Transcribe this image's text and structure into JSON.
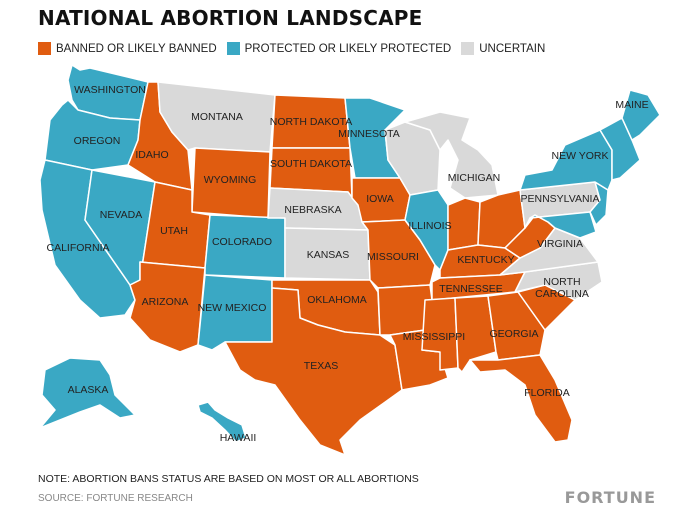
{
  "title": "NATIONAL ABORTION LANDSCAPE",
  "legend": [
    {
      "label": "BANNED OR LIKELY BANNED",
      "color": "#e05c10"
    },
    {
      "label": "PROTECTED OR LIKELY PROTECTED",
      "color": "#3aa8c4"
    },
    {
      "label": "UNCERTAIN",
      "color": "#d9d9d9"
    }
  ],
  "colors": {
    "banned": "#e05c10",
    "protected": "#3aa8c4",
    "uncertain": "#d9d9d9",
    "border": "#ffffff"
  },
  "states": {
    "washington": {
      "name": "WASHINGTON",
      "status": "protected"
    },
    "oregon": {
      "name": "OREGON",
      "status": "protected"
    },
    "california": {
      "name": "CALIFORNIA",
      "status": "protected"
    },
    "nevada": {
      "name": "NEVADA",
      "status": "protected"
    },
    "idaho": {
      "name": "IDAHO",
      "status": "banned"
    },
    "montana": {
      "name": "MONTANA",
      "status": "uncertain"
    },
    "wyoming": {
      "name": "WYOMING",
      "status": "banned"
    },
    "utah": {
      "name": "UTAH",
      "status": "banned"
    },
    "colorado": {
      "name": "COLORADO",
      "status": "protected"
    },
    "arizona": {
      "name": "ARIZONA",
      "status": "banned"
    },
    "new_mexico": {
      "name": "NEW MEXICO",
      "status": "protected"
    },
    "north_dakota": {
      "name": "NORTH DAKOTA",
      "status": "banned"
    },
    "south_dakota": {
      "name": "SOUTH DAKOTA",
      "status": "banned"
    },
    "nebraska": {
      "name": "NEBRASKA",
      "status": "uncertain"
    },
    "kansas": {
      "name": "KANSAS",
      "status": "uncertain"
    },
    "oklahoma": {
      "name": "OKLAHOMA",
      "status": "banned"
    },
    "texas": {
      "name": "TEXAS",
      "status": "banned"
    },
    "minnesota": {
      "name": "MINNESOTA",
      "status": "protected"
    },
    "iowa": {
      "name": "IOWA",
      "status": "banned"
    },
    "missouri": {
      "name": "MISSOURI",
      "status": "banned"
    },
    "arkansas": {
      "name": "",
      "status": "banned"
    },
    "louisiana": {
      "name": "",
      "status": "banned"
    },
    "wisconsin": {
      "name": "",
      "status": "uncertain"
    },
    "illinois": {
      "name": "ILLINOIS",
      "status": "protected"
    },
    "michigan": {
      "name": "MICHIGAN",
      "status": "uncertain"
    },
    "indiana": {
      "name": "",
      "status": "banned"
    },
    "ohio": {
      "name": "",
      "status": "banned"
    },
    "kentucky": {
      "name": "KENTUCKY",
      "status": "banned"
    },
    "tennessee": {
      "name": "TENNESSEE",
      "status": "banned"
    },
    "mississippi": {
      "name": "MISSISSIPPI",
      "status": "banned"
    },
    "alabama": {
      "name": "",
      "status": "banned"
    },
    "georgia": {
      "name": "GEORGIA",
      "status": "banned"
    },
    "florida": {
      "name": "FLORIDA",
      "status": "banned"
    },
    "south_carolina": {
      "name": "",
      "status": "banned"
    },
    "north_carolina": {
      "name": "NORTH CAROLINA",
      "status": "uncertain"
    },
    "virginia": {
      "name": "VIRGINIA",
      "status": "uncertain"
    },
    "west_virginia": {
      "name": "",
      "status": "banned"
    },
    "pennsylvania": {
      "name": "PENNSYLVANIA",
      "status": "uncertain"
    },
    "new_york": {
      "name": "NEW YORK",
      "status": "protected"
    },
    "new_england": {
      "name": "",
      "status": "protected"
    },
    "maine": {
      "name": "MAINE",
      "status": "protected"
    },
    "new_jersey": {
      "name": "",
      "status": "protected"
    },
    "maryland": {
      "name": "",
      "status": "protected"
    },
    "alaska": {
      "name": "ALASKA",
      "status": "protected"
    },
    "hawaii": {
      "name": "HAWAII",
      "status": "protected"
    }
  },
  "note": "NOTE: ABORTION BANS STATUS ARE BASED ON MOST OR ALL ABORTIONS",
  "source": "SOURCE: FORTUNE RESEARCH",
  "brand": "FORTUNE"
}
